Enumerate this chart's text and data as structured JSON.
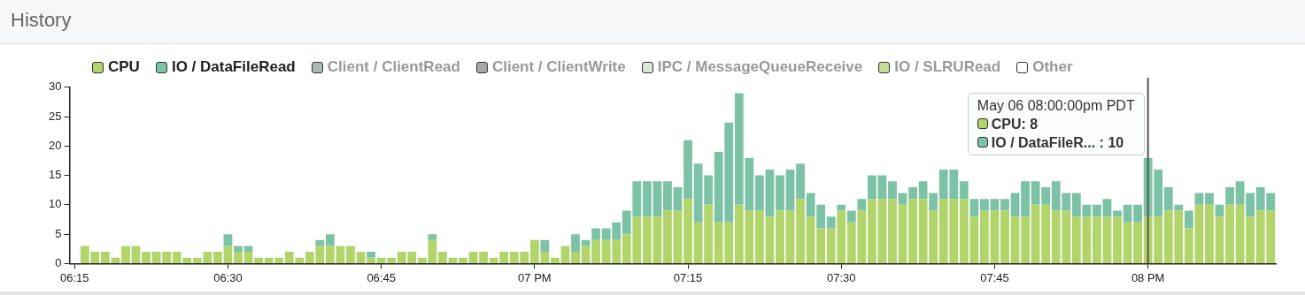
{
  "chart_data": {
    "type": "bar",
    "title": "History",
    "stacked": true,
    "legend": "top left",
    "grid": false,
    "categories": [
      "06:15",
      null,
      null,
      null,
      null,
      null,
      null,
      null,
      null,
      null,
      null,
      null,
      null,
      null,
      null,
      "06:30",
      null,
      null,
      null,
      null,
      null,
      null,
      null,
      null,
      null,
      null,
      null,
      null,
      null,
      null,
      "06:45",
      null,
      null,
      null,
      null,
      null,
      null,
      null,
      null,
      null,
      null,
      null,
      null,
      null,
      null,
      "07 PM",
      null,
      null,
      null,
      null,
      null,
      null,
      null,
      null,
      null,
      null,
      null,
      null,
      null,
      null,
      "07:15",
      null,
      null,
      null,
      null,
      null,
      null,
      null,
      null,
      null,
      null,
      null,
      null,
      null,
      null,
      "07:30",
      null,
      null,
      null,
      null,
      null,
      null,
      null,
      null,
      null,
      null,
      null,
      null,
      null,
      null,
      "07:45",
      null,
      null,
      null,
      null,
      null,
      null,
      null,
      null,
      null,
      null,
      null,
      null,
      null,
      null,
      "08 PM",
      null,
      null,
      null,
      null,
      null,
      null,
      null,
      null,
      null,
      null,
      null,
      null
    ],
    "series": [
      {
        "name": "CPU",
        "color": "#b1d56a",
        "values": [
          null,
          3,
          2,
          2,
          1,
          3,
          3,
          2,
          2,
          2,
          2,
          1,
          1,
          2,
          2,
          3,
          2,
          2,
          1,
          1,
          1,
          2,
          1,
          2,
          3,
          3,
          3,
          3,
          2,
          1,
          1,
          1,
          2,
          2,
          1,
          4,
          2,
          1,
          1,
          2,
          2,
          1,
          2,
          2,
          2,
          4,
          2,
          1,
          3,
          2,
          3,
          4,
          4,
          4,
          5,
          8,
          8,
          8,
          9,
          9,
          11,
          7,
          10,
          7,
          7,
          10,
          9,
          9,
          8,
          9,
          9,
          11,
          8,
          6,
          6,
          9,
          7,
          9,
          11,
          11,
          11,
          10,
          11,
          11,
          9,
          11,
          11,
          11,
          8,
          9,
          9,
          9,
          8,
          8,
          10,
          10,
          9,
          9,
          8,
          8,
          8,
          8,
          8,
          7,
          7,
          8,
          8,
          9,
          9,
          6,
          10,
          10,
          8,
          10,
          10,
          8,
          9,
          9
        ]
      },
      {
        "name": "IO / DataFileRead",
        "color": "#7cc2a6",
        "values": [
          null,
          0,
          0,
          0,
          0,
          0,
          0,
          0,
          0,
          0,
          0,
          0,
          0,
          0,
          0,
          2,
          1,
          1,
          0,
          0,
          0,
          0,
          0,
          0,
          1,
          2,
          0,
          0,
          0,
          1,
          0,
          0,
          0,
          0,
          0,
          1,
          0,
          0,
          0,
          0,
          0,
          0,
          0,
          0,
          0,
          0,
          2,
          0,
          0,
          3,
          1,
          2,
          2,
          3,
          4,
          6,
          6,
          6,
          5,
          4,
          10,
          10,
          5,
          12,
          17,
          19,
          9,
          6,
          8,
          6,
          7,
          6,
          4,
          4,
          2,
          1,
          2,
          2,
          4,
          4,
          3,
          2,
          2,
          3,
          3,
          5,
          5,
          3,
          3,
          2,
          2,
          2,
          4,
          6,
          4,
          3,
          5,
          3,
          4,
          2,
          2,
          3,
          1,
          3,
          3,
          10,
          8,
          4,
          1,
          3,
          2,
          2,
          2,
          3,
          4,
          4,
          4,
          3
        ]
      },
      {
        "name": "Client / ClientRead",
        "color": "#a9b9b4",
        "values": [
          null,
          null,
          null,
          null,
          null,
          null,
          null,
          null,
          null,
          null,
          null,
          null,
          null,
          null,
          null,
          null,
          null,
          null,
          null,
          null,
          null,
          null,
          null,
          null,
          null,
          null,
          null,
          null,
          null,
          null,
          null,
          null,
          null,
          null,
          null,
          null,
          null,
          null,
          null,
          null,
          null,
          null,
          null,
          null,
          null,
          null,
          null,
          null,
          null,
          null,
          null,
          null,
          null,
          null,
          null,
          null,
          null,
          null,
          null,
          null,
          null,
          null,
          null,
          null,
          null,
          null,
          null,
          null,
          null,
          null,
          null,
          null,
          null,
          null,
          null,
          null,
          null,
          null,
          null,
          null,
          null,
          null,
          null,
          null,
          null,
          null,
          null,
          null,
          null,
          null,
          null,
          null,
          null,
          null,
          null,
          null,
          null,
          null,
          null,
          null,
          null,
          null,
          null,
          null,
          null,
          null,
          null,
          null,
          null,
          null,
          null,
          null,
          null,
          null,
          null,
          null,
          null,
          null
        ]
      },
      {
        "name": "Client / ClientWrite",
        "color": "#a8a8a8",
        "values": [
          null,
          null,
          null,
          null,
          null,
          null,
          null,
          null,
          null,
          null,
          null,
          null,
          null,
          null,
          null,
          null,
          null,
          null,
          null,
          null,
          null,
          null,
          null,
          null,
          null,
          null,
          null,
          null,
          null,
          null,
          null,
          null,
          null,
          null,
          null,
          null,
          null,
          null,
          null,
          null,
          null,
          null,
          null,
          null,
          null,
          null,
          null,
          null,
          null,
          null,
          null,
          null,
          null,
          null,
          null,
          null,
          null,
          null,
          null,
          null,
          null,
          null,
          null,
          null,
          null,
          null,
          null,
          null,
          null,
          null,
          null,
          null,
          null,
          null,
          null,
          null,
          null,
          null,
          null,
          null,
          null,
          null,
          null,
          null,
          null,
          null,
          null,
          null,
          null,
          null,
          null,
          null,
          null,
          null,
          null,
          null,
          null,
          null,
          null,
          null,
          null,
          null,
          null,
          null,
          null,
          null,
          null,
          null,
          null,
          null,
          null,
          null,
          null,
          null,
          null,
          null,
          null,
          null
        ]
      },
      {
        "name": "IPC / MessageQueueReceive",
        "color": "#dbe8d3",
        "values": [
          null,
          null,
          null,
          null,
          null,
          null,
          null,
          null,
          null,
          null,
          null,
          null,
          null,
          null,
          null,
          null,
          null,
          null,
          null,
          null,
          null,
          null,
          null,
          null,
          null,
          null,
          null,
          null,
          null,
          null,
          null,
          null,
          null,
          null,
          null,
          null,
          null,
          null,
          null,
          null,
          null,
          null,
          null,
          null,
          null,
          null,
          null,
          null,
          null,
          null,
          null,
          null,
          null,
          null,
          null,
          null,
          null,
          null,
          null,
          null,
          null,
          null,
          null,
          null,
          null,
          null,
          null,
          null,
          null,
          null,
          null,
          null,
          null,
          null,
          null,
          null,
          null,
          null,
          null,
          null,
          null,
          null,
          null,
          null,
          null,
          null,
          null,
          null,
          null,
          null,
          null,
          null,
          null,
          null,
          null,
          null,
          null,
          null,
          null,
          null,
          null,
          null,
          null,
          null,
          null,
          null,
          null,
          null,
          null,
          null,
          null,
          null,
          null,
          null,
          null,
          null,
          null,
          null
        ]
      },
      {
        "name": "IO / SLRURead",
        "color": "#c3dd9a",
        "values": [
          null,
          null,
          null,
          null,
          null,
          null,
          null,
          null,
          null,
          null,
          null,
          null,
          null,
          null,
          null,
          null,
          null,
          null,
          null,
          null,
          null,
          null,
          null,
          null,
          null,
          null,
          null,
          null,
          null,
          null,
          null,
          null,
          null,
          null,
          null,
          null,
          null,
          null,
          null,
          null,
          null,
          null,
          null,
          null,
          null,
          null,
          null,
          null,
          null,
          null,
          null,
          null,
          null,
          null,
          null,
          null,
          null,
          null,
          null,
          null,
          null,
          null,
          null,
          null,
          null,
          null,
          null,
          null,
          null,
          null,
          null,
          null,
          null,
          null,
          null,
          null,
          null,
          null,
          null,
          null,
          null,
          null,
          null,
          null,
          null,
          null,
          null,
          null,
          null,
          null,
          null,
          null,
          null,
          null,
          null,
          null,
          null,
          null,
          null,
          null,
          null,
          null,
          null,
          null,
          null,
          null,
          null,
          null,
          null,
          null,
          null,
          null,
          null,
          null,
          null,
          null,
          null,
          null
        ]
      },
      {
        "name": "Other",
        "color": "#ffffff",
        "values": [
          null,
          null,
          null,
          null,
          null,
          null,
          null,
          null,
          null,
          null,
          null,
          null,
          null,
          null,
          null,
          null,
          null,
          null,
          null,
          null,
          null,
          null,
          null,
          null,
          null,
          null,
          null,
          null,
          null,
          null,
          null,
          null,
          null,
          null,
          null,
          null,
          null,
          null,
          null,
          null,
          null,
          null,
          null,
          null,
          null,
          null,
          null,
          null,
          null,
          null,
          null,
          null,
          null,
          null,
          null,
          null,
          null,
          null,
          null,
          null,
          null,
          null,
          null,
          null,
          null,
          null,
          null,
          null,
          null,
          null,
          null,
          null,
          null,
          null,
          null,
          null,
          null,
          null,
          null,
          null,
          null,
          null,
          null,
          null,
          null,
          null,
          null,
          null,
          null,
          null,
          null,
          null,
          null,
          null,
          null,
          null,
          null,
          null,
          null,
          null,
          null,
          null,
          null,
          null,
          null,
          null,
          null,
          null,
          null,
          null,
          null,
          null,
          null,
          null,
          null,
          null,
          null,
          null
        ]
      }
    ],
    "ylim": [
      0,
      30
    ],
    "yticks": [
      0,
      5,
      10,
      15,
      20,
      25,
      30
    ],
    "ref_lines": [
      {
        "axis": "x",
        "value": "08 PM",
        "color": "#555555"
      }
    ],
    "annotations": [
      "May 06 08:00:00pm PDT",
      "CPU: 8",
      "IO / DataFileR... : 10"
    ]
  }
}
